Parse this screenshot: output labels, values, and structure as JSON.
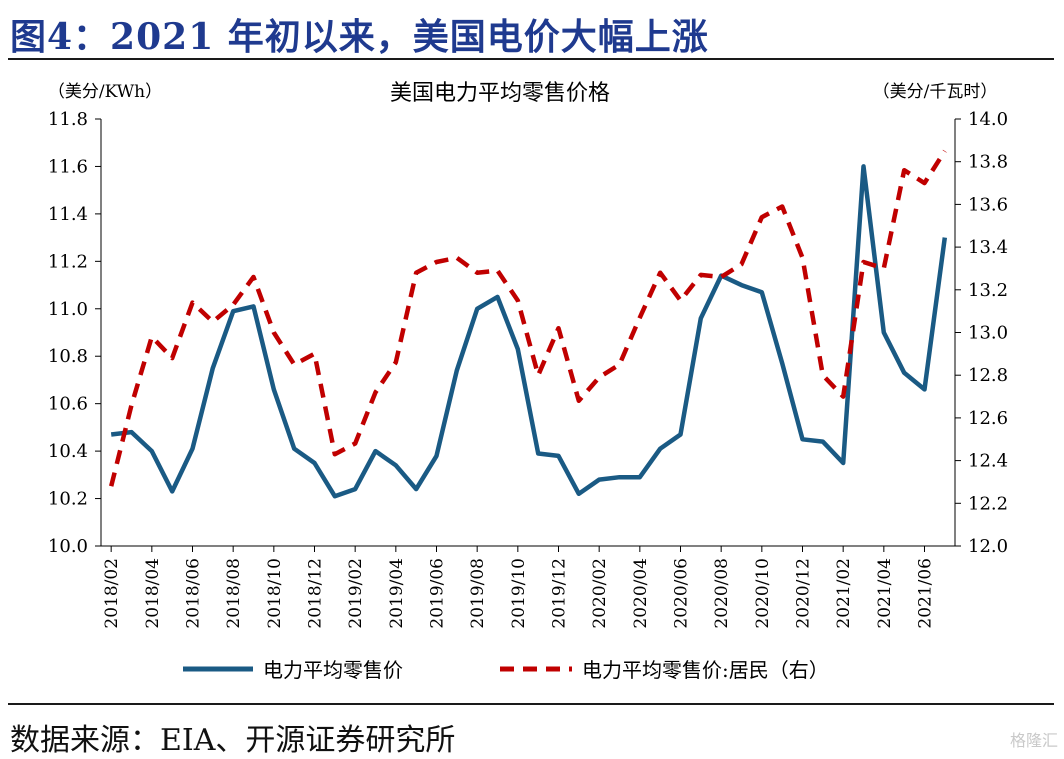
{
  "figure": {
    "title": "图4：2021 年初以来，美国电价大幅上涨",
    "source": "数据来源：EIA、开源证券研究所",
    "watermark": "格隆汇"
  },
  "chart_data": {
    "type": "line",
    "title": "美国电力平均零售价格",
    "ylabel_left": "（美分/KWh）",
    "ylabel_right": "（美分/千瓦时）",
    "ylim_left": [
      10.0,
      11.8
    ],
    "ylim_right": [
      12.0,
      14.0
    ],
    "yticks_left": [
      "10.0",
      "10.2",
      "10.4",
      "10.6",
      "10.8",
      "11.0",
      "11.2",
      "11.4",
      "11.6",
      "11.8"
    ],
    "yticks_right": [
      "12.0",
      "12.2",
      "12.4",
      "12.6",
      "12.8",
      "13.0",
      "13.2",
      "13.4",
      "13.6",
      "13.8",
      "14.0"
    ],
    "x": [
      "2018/02",
      "2018/03",
      "2018/04",
      "2018/05",
      "2018/06",
      "2018/07",
      "2018/08",
      "2018/09",
      "2018/10",
      "2018/11",
      "2018/12",
      "2019/01",
      "2019/02",
      "2019/03",
      "2019/04",
      "2019/05",
      "2019/06",
      "2019/07",
      "2019/08",
      "2019/09",
      "2019/10",
      "2019/11",
      "2019/12",
      "2020/01",
      "2020/02",
      "2020/03",
      "2020/04",
      "2020/05",
      "2020/06",
      "2020/07",
      "2020/08",
      "2020/09",
      "2020/10",
      "2020/11",
      "2020/12",
      "2021/01",
      "2021/02",
      "2021/03",
      "2021/04",
      "2021/05",
      "2021/06",
      "2021/07"
    ],
    "xticks": [
      "2018/02",
      "2018/04",
      "2018/06",
      "2018/08",
      "2018/10",
      "2018/12",
      "2019/02",
      "2019/04",
      "2019/06",
      "2019/08",
      "2019/10",
      "2019/12",
      "2020/02",
      "2020/04",
      "2020/06",
      "2020/08",
      "2020/10",
      "2020/12",
      "2021/02",
      "2021/04",
      "2021/06"
    ],
    "series": [
      {
        "name": "电力平均零售价",
        "axis": "left",
        "color": "#1a5a84",
        "style": "solid",
        "values": [
          10.47,
          10.48,
          10.4,
          10.23,
          10.41,
          10.75,
          10.99,
          11.01,
          10.66,
          10.41,
          10.35,
          10.21,
          10.24,
          10.4,
          10.34,
          10.24,
          10.38,
          10.74,
          11.0,
          11.05,
          10.83,
          10.39,
          10.38,
          10.22,
          10.28,
          10.29,
          10.29,
          10.41,
          10.47,
          10.96,
          11.14,
          11.1,
          11.07,
          10.77,
          10.45,
          10.44,
          10.35,
          11.6,
          10.9,
          10.73,
          10.66,
          11.3
        ]
      },
      {
        "name": "电力平均零售价:居民（右）",
        "axis": "right",
        "color": "#c00000",
        "style": "dashed",
        "values": [
          12.28,
          12.66,
          12.98,
          12.88,
          13.14,
          13.05,
          13.13,
          13.26,
          13.0,
          12.85,
          12.9,
          12.43,
          12.48,
          12.72,
          12.86,
          13.28,
          13.33,
          13.35,
          13.28,
          13.29,
          13.15,
          12.8,
          13.02,
          12.68,
          12.79,
          12.85,
          13.07,
          13.28,
          13.15,
          13.27,
          13.26,
          13.32,
          13.54,
          13.59,
          13.35,
          12.8,
          12.7,
          13.33,
          13.3,
          13.76,
          13.7,
          13.85
        ]
      }
    ],
    "grid": false,
    "legend_position": "bottom"
  }
}
